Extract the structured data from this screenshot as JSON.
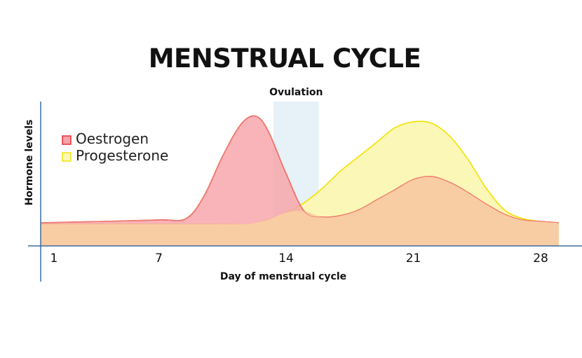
{
  "chart_data": {
    "type": "area",
    "title": "MENSTRUAL CYCLE",
    "xlabel": "Day of menstrual cycle",
    "ylabel": "Hormone levels",
    "x_ticks": [
      1,
      7,
      14,
      21,
      28
    ],
    "xlim": [
      0.5,
      29
    ],
    "ylim": [
      0,
      100
    ],
    "annotation": {
      "label": "Ovulation",
      "x_start": 13.3,
      "x_end": 15.8
    },
    "legend_position": "top-left",
    "series": [
      {
        "name": "Oestrogen",
        "color": "#e8232b",
        "fill": "#f7a3a8",
        "x": [
          0.5,
          4,
          7,
          8.5,
          9.5,
          10.5,
          11.5,
          12.3,
          13,
          14,
          15,
          16,
          17,
          18,
          19,
          20,
          21,
          22,
          23,
          24,
          25,
          26,
          27,
          28,
          29
        ],
        "y": [
          16,
          17,
          18,
          19,
          35,
          62,
          84,
          90,
          80,
          50,
          24,
          20,
          21,
          25,
          32,
          39,
          46,
          48,
          44,
          37,
          29,
          22,
          18,
          17,
          16
        ]
      },
      {
        "name": "Progesterone",
        "color": "#f2e200",
        "fill": "#fbf7b6",
        "x": [
          0.5,
          4,
          7,
          10,
          12,
          13,
          14,
          15,
          16,
          17,
          18,
          19,
          20,
          21,
          22,
          23,
          24,
          25,
          26,
          27,
          28,
          29
        ],
        "y": [
          15,
          15,
          15,
          15,
          15,
          18,
          23,
          30,
          40,
          52,
          62,
          72,
          82,
          86,
          85,
          76,
          60,
          40,
          25,
          19,
          17,
          16
        ]
      }
    ]
  }
}
